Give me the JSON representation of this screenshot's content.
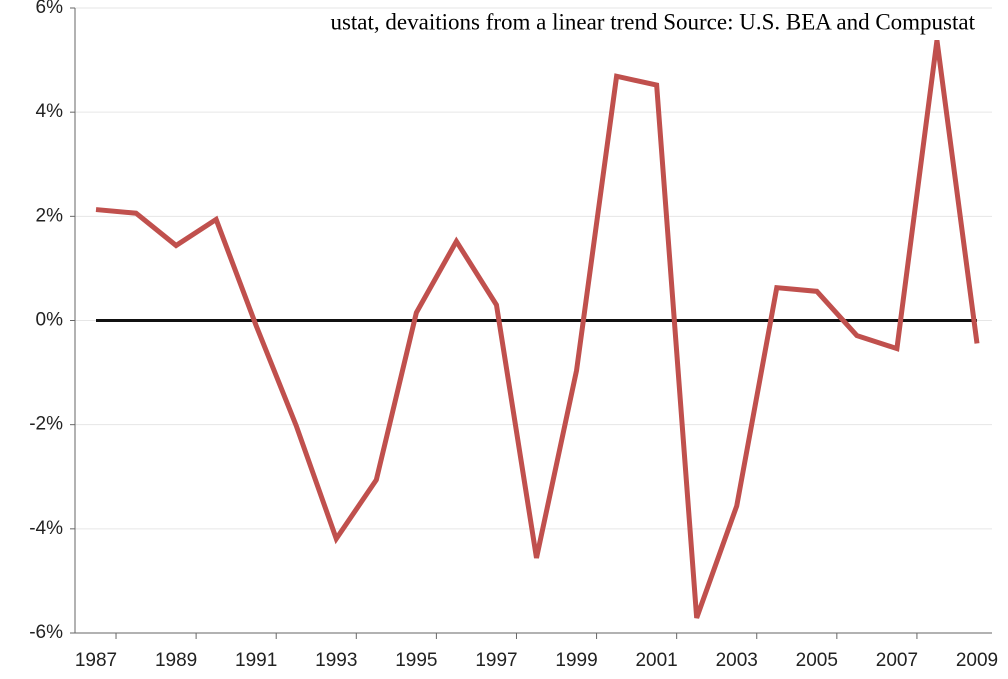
{
  "chart_data": {
    "type": "line",
    "title": "ustat, devaitions from a linear trend Source: U.S. BEA and Compustat",
    "categories": [
      "1987",
      null,
      "1989",
      null,
      "1991",
      null,
      "1993",
      null,
      "1995",
      null,
      "1997",
      null,
      "1999",
      null,
      "2001",
      null,
      "2003",
      null,
      "2005",
      null,
      "2007",
      null,
      "2009"
    ],
    "series": [
      {
        "name": null,
        "color": "#c0504d",
        "values": [
          2.13,
          2.06,
          1.44,
          1.94,
          -0.1,
          -2.02,
          -4.19,
          -3.06,
          0.15,
          1.52,
          0.3,
          -4.56,
          -0.96,
          4.69,
          4.52,
          -5.71,
          -3.56,
          0.63,
          0.56,
          -0.29,
          -0.54,
          5.38,
          -0.44
        ]
      }
    ],
    "ylim": [
      -6,
      6
    ],
    "yticks": [
      {
        "value": -6,
        "label": "-6%"
      },
      {
        "value": -4,
        "label": "-4%"
      },
      {
        "value": -2,
        "label": "-2%"
      },
      {
        "value": 0,
        "label": "0%"
      },
      {
        "value": 2,
        "label": "2%"
      },
      {
        "value": 4,
        "label": "4%"
      },
      {
        "value": 6,
        "label": "6%"
      }
    ],
    "reference_line": 0,
    "reference_color": "#111111",
    "grid": true
  }
}
